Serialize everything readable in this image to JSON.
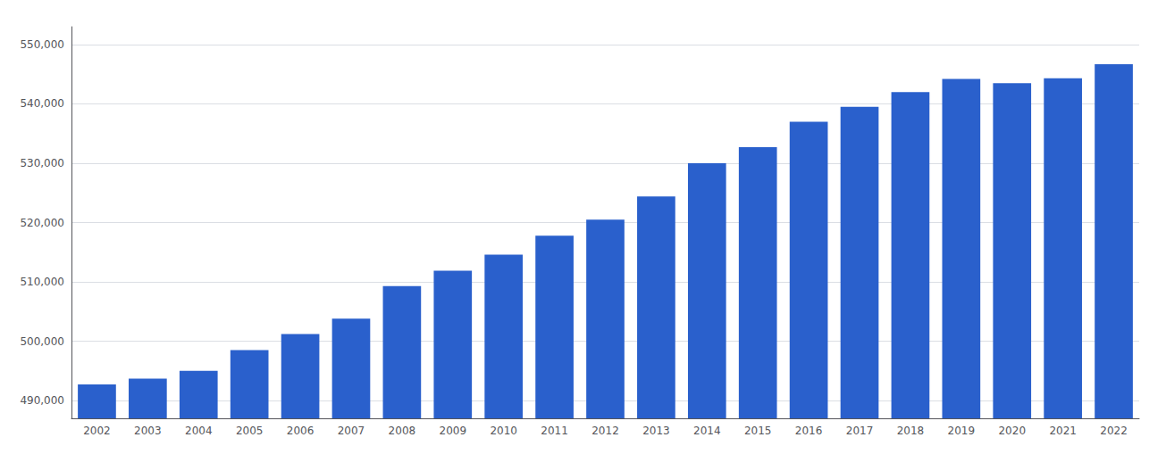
{
  "chart_data": {
    "type": "bar",
    "categories": [
      "2002",
      "2003",
      "2004",
      "2005",
      "2006",
      "2007",
      "2008",
      "2009",
      "2010",
      "2011",
      "2012",
      "2013",
      "2014",
      "2015",
      "2016",
      "2017",
      "2018",
      "2019",
      "2020",
      "2021",
      "2022"
    ],
    "values": [
      492700,
      493700,
      495000,
      498500,
      501200,
      503800,
      509300,
      511900,
      514600,
      517800,
      520500,
      524400,
      530000,
      532700,
      537000,
      539500,
      542000,
      544200,
      543500,
      544300,
      546700
    ],
    "color": "#2A60CC",
    "ylim": [
      487000,
      553000
    ],
    "yticks": [
      {
        "value": 490000,
        "label": "490,000"
      },
      {
        "value": 500000,
        "label": "500,000"
      },
      {
        "value": 510000,
        "label": "510,000"
      },
      {
        "value": 520000,
        "label": "520,000"
      },
      {
        "value": 530000,
        "label": "530,000"
      },
      {
        "value": 540000,
        "label": "540,000"
      },
      {
        "value": 550000,
        "label": "550,000"
      }
    ],
    "grid": true
  }
}
